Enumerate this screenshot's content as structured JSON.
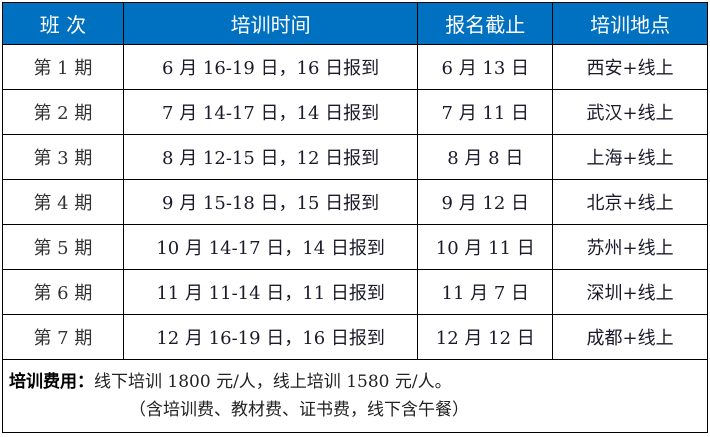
{
  "header": {
    "color": "#0070c0",
    "columns": [
      "班 次",
      "培训时间",
      "报名截止",
      "培训地点"
    ]
  },
  "rows": [
    [
      "第 1 期",
      "6 月 16-19 日，16 日报到",
      "6 月 13 日",
      "西安+线上"
    ],
    [
      "第 2 期",
      "7 月 14-17 日，14 日报到",
      "7 月 11 日",
      "武汉+线上"
    ],
    [
      "第 3 期",
      "8 月 12-15 日，12 日报到",
      "8 月 8 日",
      "上海+线上"
    ],
    [
      "第 4 期",
      "9 月 15-18 日，15 日报到",
      "9 月 12 日",
      "北京+线上"
    ],
    [
      "第 5 期",
      "10 月 14-17 日，14 日报到",
      "10 月 11 日",
      "苏州+线上"
    ],
    [
      "第 6 期",
      "11 月 11-14 日，11 日报到",
      "11 月 7 日",
      "深圳+线上"
    ],
    [
      "第 7 期",
      "12 月 16-19 日，16 日报到",
      "12 月 12 日",
      "成都+线上"
    ]
  ],
  "footer": {
    "label": "培训费用：",
    "line1": "线下培训 1800 元/人，线上培训 1580 元/人。",
    "line2": "（含培训费、教材费、证书费，线下含午餐）"
  }
}
